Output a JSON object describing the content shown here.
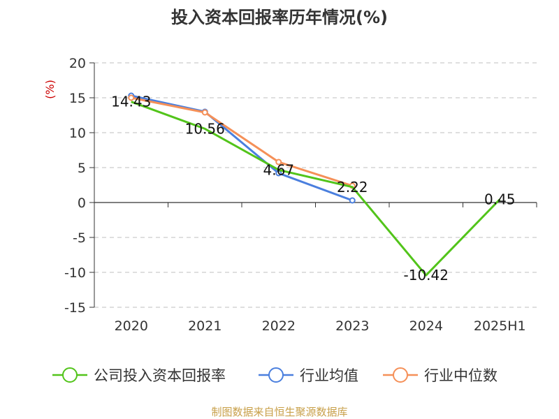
{
  "chart_data": {
    "type": "line",
    "title": "投入资本回报率历年情况(%)",
    "ylabel": "(%)",
    "categories": [
      "2020",
      "2021",
      "2022",
      "2023",
      "2024",
      "2025H1"
    ],
    "ylim": [
      -15,
      20
    ],
    "yticks": [
      20,
      15,
      10,
      5,
      0,
      -5,
      -10,
      -15
    ],
    "grid": true,
    "legend_position": "bottom",
    "series": [
      {
        "name": "公司投入资本回报率",
        "color": "#52c41a",
        "values": [
          14.43,
          10.56,
          4.67,
          2.22,
          -10.42,
          0.45
        ],
        "labels": [
          "14.43",
          "10.56",
          "4.67",
          "2.22",
          "-10.42",
          "0.45"
        ]
      },
      {
        "name": "行业均值",
        "color": "#4a7fde",
        "values": [
          15.3,
          13.0,
          4.2,
          0.3,
          null,
          null
        ]
      },
      {
        "name": "行业中位数",
        "color": "#f59058",
        "values": [
          15.0,
          12.9,
          5.8,
          2.4,
          null,
          null
        ]
      }
    ],
    "source": "制图数据来自恒生聚源数据库"
  }
}
